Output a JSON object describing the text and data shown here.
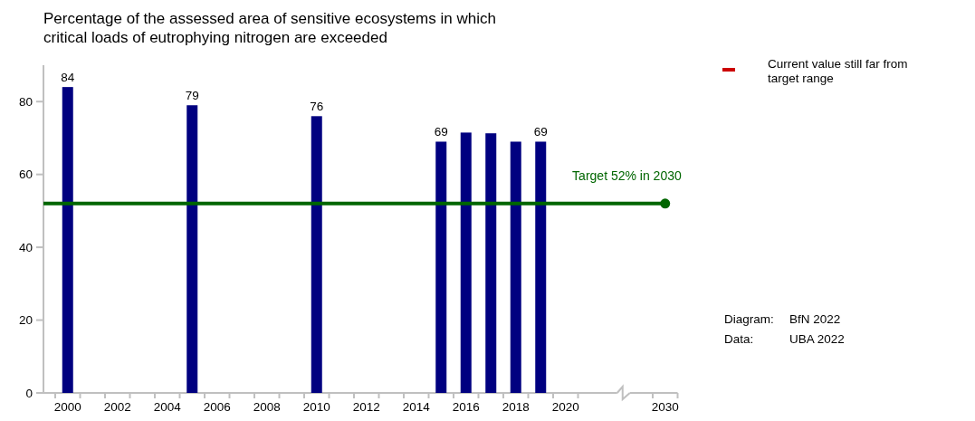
{
  "chart_data": {
    "type": "bar",
    "title": "Percentage of the assessed area of sensitive ecosystems in which critical loads of eutrophying nitrogen are exceeded",
    "categories": [
      "2000",
      null,
      "2002",
      null,
      "2004",
      null,
      "2006",
      null,
      "2008",
      null,
      "2010",
      null,
      "2012",
      null,
      "2014",
      null,
      "2016",
      null,
      "2018",
      null,
      "2020",
      null,
      null,
      null,
      "2030"
    ],
    "values": [
      84,
      null,
      null,
      null,
      null,
      79,
      null,
      null,
      null,
      null,
      76,
      null,
      null,
      null,
      null,
      69,
      71.5,
      71.3,
      69,
      69,
      null,
      null,
      null,
      null,
      null
    ],
    "value_labels": [
      "84",
      null,
      null,
      null,
      null,
      "79",
      null,
      null,
      null,
      null,
      "76",
      null,
      null,
      null,
      null,
      "69",
      null,
      null,
      null,
      "69",
      null,
      null,
      null,
      null,
      null
    ],
    "color": "#000080",
    "ylim": [
      0,
      90
    ],
    "yticks": [
      0,
      20,
      40,
      60,
      80
    ],
    "grid": false,
    "ref_lines": [
      {
        "axis": "y",
        "value": 52,
        "label": "Target 52% in 2030",
        "color": "#006600"
      }
    ],
    "annotations": [
      "Current value still far from target range",
      "Diagram:  BfN 2022",
      "Data:  UBA 2022"
    ]
  }
}
